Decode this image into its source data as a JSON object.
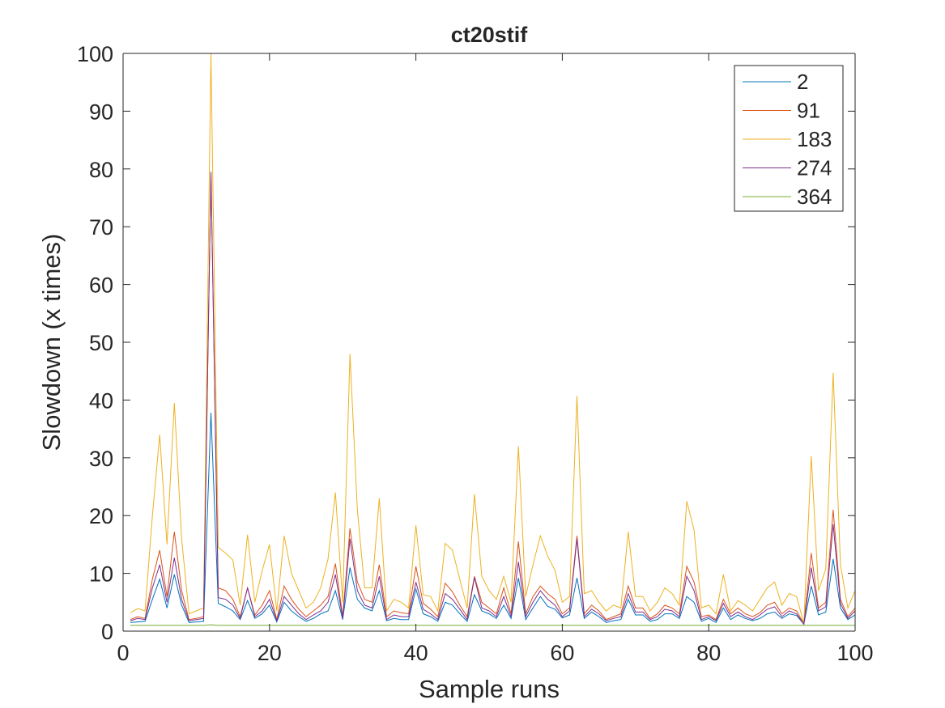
{
  "chart_data": {
    "type": "line",
    "title": "ct20stif",
    "xlabel": "Sample runs",
    "ylabel": "Slowdown (x times)",
    "xlim": [
      0,
      100
    ],
    "ylim": [
      0,
      100
    ],
    "xticks": [
      0,
      20,
      40,
      60,
      80,
      100
    ],
    "yticks": [
      0,
      10,
      20,
      30,
      40,
      50,
      60,
      70,
      80,
      90,
      100
    ],
    "grid": false,
    "legend_position": "top-right",
    "x": [
      1,
      2,
      3,
      4,
      5,
      6,
      7,
      8,
      9,
      10,
      11,
      12,
      13,
      14,
      15,
      16,
      17,
      18,
      19,
      20,
      21,
      22,
      23,
      24,
      25,
      26,
      27,
      28,
      29,
      30,
      31,
      32,
      33,
      34,
      35,
      36,
      37,
      38,
      39,
      40,
      41,
      42,
      43,
      44,
      45,
      46,
      47,
      48,
      49,
      50,
      51,
      52,
      53,
      54,
      55,
      56,
      57,
      58,
      59,
      60,
      61,
      62,
      63,
      64,
      65,
      66,
      67,
      68,
      69,
      70,
      71,
      72,
      73,
      74,
      75,
      76,
      77,
      78,
      79,
      80,
      81,
      82,
      83,
      84,
      85,
      86,
      87,
      88,
      89,
      90,
      91,
      92,
      93,
      94,
      95,
      96,
      97,
      98,
      99,
      100
    ],
    "series": [
      {
        "name": "2",
        "color": "#0072BD",
        "values": [
          1.5,
          1.6,
          1.7,
          5.5,
          9,
          4,
          9.8,
          4.5,
          1.5,
          1.6,
          1.7,
          37.8,
          4.8,
          4.2,
          3.5,
          2,
          5.3,
          2.2,
          3,
          4.5,
          1.6,
          5,
          3.5,
          2.5,
          1.7,
          2.2,
          3,
          3.5,
          7,
          2,
          11,
          5.5,
          4,
          3.5,
          7,
          1.8,
          2.2,
          2,
          2,
          7.3,
          3,
          2.5,
          1.7,
          5,
          4.5,
          3,
          1.7,
          6.3,
          3.5,
          3,
          2.2,
          4.5,
          2.2,
          9.2,
          2,
          4,
          6,
          4.3,
          3.8,
          2.3,
          2.8,
          9.2,
          2.2,
          3.3,
          2.5,
          1.5,
          1.8,
          2,
          5.5,
          2.8,
          2.8,
          1.7,
          2,
          3,
          3,
          2.2,
          6,
          5,
          1.7,
          2.2,
          1.5,
          4,
          2,
          2.8,
          2.2,
          1.8,
          2.2,
          3,
          3.3,
          2.2,
          3,
          2.7,
          1.2,
          7.8,
          2.8,
          3.3,
          12.5,
          4,
          2,
          2.8
        ]
      },
      {
        "name": "91",
        "color": "#D95319",
        "values": [
          2,
          2.5,
          2.2,
          9,
          14,
          6,
          17.2,
          7,
          2,
          2.2,
          2.5,
          79.5,
          7.5,
          7,
          5.5,
          2.5,
          7.5,
          2.8,
          4.5,
          7,
          2,
          7.8,
          5.5,
          3.8,
          2.5,
          3.5,
          4.5,
          6,
          11.7,
          2.5,
          17.8,
          8.5,
          5.5,
          5,
          11.5,
          2.5,
          3.5,
          3.2,
          3,
          11.2,
          4.8,
          3.8,
          2.5,
          8.3,
          6.8,
          4.5,
          2.5,
          9.5,
          5,
          4,
          3,
          7.5,
          3,
          15.5,
          3,
          6,
          7.8,
          6.5,
          5.5,
          3,
          4,
          16.5,
          3,
          4.5,
          3.5,
          2,
          2.5,
          3,
          7.8,
          4,
          4,
          2.2,
          3,
          4.5,
          4,
          3,
          11.2,
          8.5,
          2.5,
          2.8,
          2,
          5.5,
          3,
          4,
          3,
          2.5,
          3.2,
          4.5,
          5,
          3,
          4,
          3.5,
          1.3,
          13.5,
          4,
          5,
          21,
          5.5,
          2.5,
          4
        ]
      },
      {
        "name": "183",
        "color": "#EDB120",
        "values": [
          3.2,
          3.9,
          3.5,
          20,
          34,
          15,
          39.5,
          16,
          3,
          3.5,
          4,
          100,
          14.5,
          13.5,
          12.3,
          4.5,
          16.7,
          5,
          10.5,
          15,
          3.5,
          16.5,
          10,
          7,
          4,
          5,
          7.5,
          12.5,
          24,
          5,
          48,
          21,
          7.5,
          7.5,
          23,
          3.5,
          5.5,
          5,
          4,
          18.3,
          6.3,
          6,
          3.5,
          15.2,
          14,
          9,
          4,
          23.7,
          9.5,
          7,
          5.5,
          9.5,
          5,
          32,
          6,
          11.5,
          16.5,
          13,
          10.5,
          5,
          6,
          40.7,
          6.5,
          7,
          5,
          3.5,
          4.5,
          4,
          17.2,
          6,
          6,
          3.5,
          5,
          7.5,
          6.5,
          4.5,
          22.5,
          17.5,
          4,
          4.5,
          3,
          9.8,
          3.5,
          5.3,
          4.5,
          3.5,
          5.5,
          7.5,
          8.5,
          4.5,
          6.5,
          6,
          1.3,
          30.3,
          7,
          10.8,
          44.7,
          11.5,
          4,
          7
        ]
      },
      {
        "name": "274",
        "color": "#7E2F8E",
        "values": [
          1.8,
          2.2,
          2,
          7.5,
          11.5,
          5,
          12.7,
          5.5,
          1.8,
          2,
          2.2,
          79.5,
          5.8,
          5.5,
          4.5,
          2.2,
          7.5,
          2.5,
          3.5,
          5.5,
          1.8,
          6,
          4.5,
          3,
          2,
          2.8,
          3.5,
          5,
          9.8,
          2.2,
          16,
          7,
          4.5,
          4,
          9.5,
          2,
          2.8,
          2.5,
          2.5,
          8.5,
          3.8,
          3,
          2,
          6.5,
          5.5,
          3.8,
          2,
          9.3,
          4,
          3.5,
          2.5,
          6,
          2.5,
          12,
          2.5,
          5,
          7,
          5.5,
          4.5,
          2.5,
          3.5,
          16,
          2.5,
          3.8,
          3,
          1.8,
          2.2,
          2.5,
          6.5,
          3.3,
          3.3,
          2,
          2.5,
          3.8,
          3.5,
          2.5,
          9.5,
          7,
          2,
          2.5,
          1.8,
          4.8,
          2.5,
          3.3,
          2.5,
          2,
          2.8,
          3.8,
          4.2,
          2.5,
          3.5,
          3,
          1.2,
          11,
          3.5,
          4.2,
          18.5,
          4.8,
          2.2,
          3.5
        ]
      },
      {
        "name": "364",
        "color": "#77AC30",
        "values": [
          1,
          1,
          1,
          1,
          1,
          1,
          1,
          1,
          1,
          1,
          1,
          1.1,
          1,
          1,
          1,
          1,
          1,
          1,
          1,
          1,
          1,
          1,
          1,
          1,
          1,
          1,
          1,
          1,
          1,
          1,
          1,
          1,
          1,
          1,
          1,
          1,
          1,
          1,
          1,
          1,
          1,
          1,
          1,
          1,
          1,
          1,
          1,
          1,
          1,
          1,
          1,
          1,
          1,
          1,
          1,
          1,
          1,
          1,
          1,
          1,
          1,
          1,
          1,
          1,
          1,
          1,
          1,
          1,
          1,
          1,
          1,
          1,
          1,
          1,
          1,
          1,
          1,
          1,
          1,
          1,
          1,
          1,
          1,
          1,
          1,
          1,
          1,
          1,
          1,
          1,
          1,
          1,
          1,
          1,
          1,
          1,
          1,
          1,
          1,
          1
        ]
      }
    ]
  }
}
